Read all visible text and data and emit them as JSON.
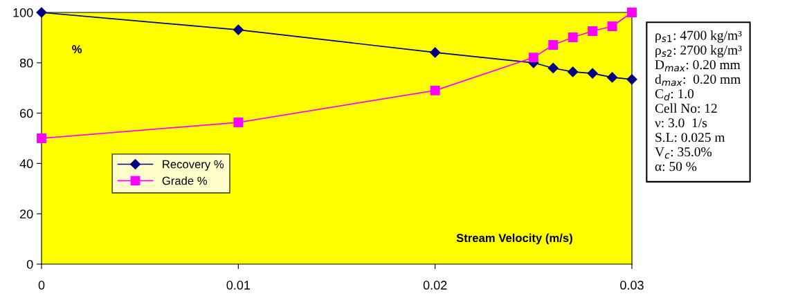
{
  "chart_data": {
    "type": "line",
    "xlabel": "Stream Velocity (m/s)",
    "ylabel": "%",
    "x": [
      0,
      0.01,
      0.02,
      0.025,
      0.026,
      0.027,
      0.028,
      0.029,
      0.03
    ],
    "series": [
      {
        "name": "Recovery %",
        "color": "#000080",
        "marker": "diamond",
        "values": [
          100,
          93.1,
          84.1,
          80.0,
          77.9,
          76.4,
          75.8,
          74.2,
          73.4
        ]
      },
      {
        "name": "Grade %",
        "color": "#ff00ff",
        "marker": "square",
        "values": [
          50,
          56.3,
          69.0,
          82.1,
          87.1,
          90.1,
          92.6,
          94.5,
          100
        ]
      }
    ],
    "xlim": [
      0,
      0.03
    ],
    "xticks": [
      0,
      0.01,
      0.02,
      0.03
    ],
    "ylim": [
      0,
      100
    ],
    "yticks": [
      0,
      20,
      40,
      60,
      80,
      100
    ],
    "grid": false,
    "legend": "center left",
    "line_style": "solid",
    "annotations": [
      "ρ$_{s1}$: 4700 kg/m³\nρ$_{s2}$: 2700 kg/m³\nD$_{max}$: 0.20 mm\nd$_{max}$:  0.20 mm\nC$_{d}$: 1.0\nCell No: 12\nν: 3.0  1/s\nS.L: 0.025 m\nV$_{c}$: 35.0%\nα: 50 %"
    ]
  }
}
